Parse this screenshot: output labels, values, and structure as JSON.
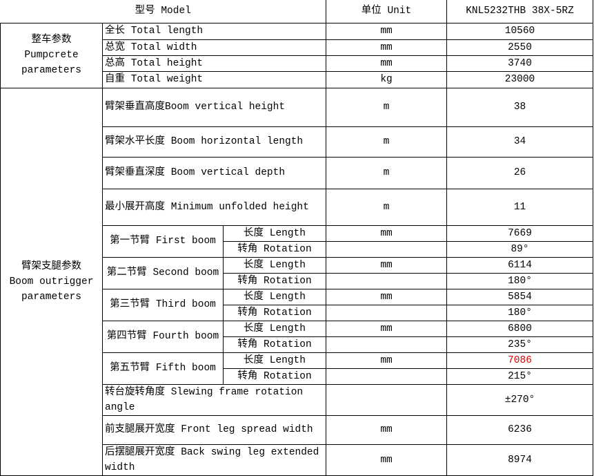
{
  "header": {
    "model_label": "型号 Model",
    "unit_label": "单位 Unit",
    "model_value": "KNL5232THB  38X-5RZ"
  },
  "pumpcrete": {
    "group_cn": "整车参数",
    "group_en": "Pumpcrete parameters",
    "rows": [
      {
        "label": "全长 Total length",
        "unit": "mm",
        "value": "10560"
      },
      {
        "label": "总宽 Total width",
        "unit": "mm",
        "value": "2550"
      },
      {
        "label": "总高 Total height",
        "unit": "mm",
        "value": "3740"
      },
      {
        "label": "自重 Total weight",
        "unit": "kg",
        "value": "23000"
      }
    ]
  },
  "boom": {
    "group_cn": "臂架支腿参数",
    "group_en": "Boom outrigger parameters",
    "top_rows": [
      {
        "label": "臂架垂直高度Boom vertical height",
        "unit": "m",
        "value": "38"
      },
      {
        "label": "臂架水平长度 Boom horizontal length",
        "unit": "m",
        "value": "34"
      },
      {
        "label": "臂架垂直深度 Boom vertical depth",
        "unit": "m",
        "value": "26"
      },
      {
        "label": "最小展开高度 Minimum unfolded height",
        "unit": "m",
        "value": "11"
      }
    ],
    "length_label": "长度 Length",
    "rotation_label": "转角 Rotation",
    "sections": [
      {
        "label": "第一节臂 First boom",
        "length_unit": "mm",
        "length": "7669",
        "rotation": "89°"
      },
      {
        "label": "第二节臂 Second boom",
        "length_unit": "mm",
        "length": "6114",
        "rotation": "180°"
      },
      {
        "label": "第三节臂 Third boom",
        "length_unit": "mm",
        "length": "5854",
        "rotation": "180°"
      },
      {
        "label": "第四节臂 Fourth boom",
        "length_unit": "mm",
        "length": "6800",
        "rotation": "235°"
      },
      {
        "label": "第五节臂 Fifth boom",
        "length_unit": "mm",
        "length": "7086",
        "rotation": "215°",
        "highlight_color": "#e00000"
      }
    ],
    "bottom_rows": [
      {
        "label": "转台旋转角度 Slewing frame rotation angle",
        "unit": "",
        "value": "±270°"
      },
      {
        "label": "前支腿展开宽度 Front leg spread width",
        "unit": "mm",
        "value": "6236"
      },
      {
        "label": "后摆腿展开宽度 Back swing leg extended width",
        "unit": "mm",
        "value": "8974"
      }
    ]
  }
}
